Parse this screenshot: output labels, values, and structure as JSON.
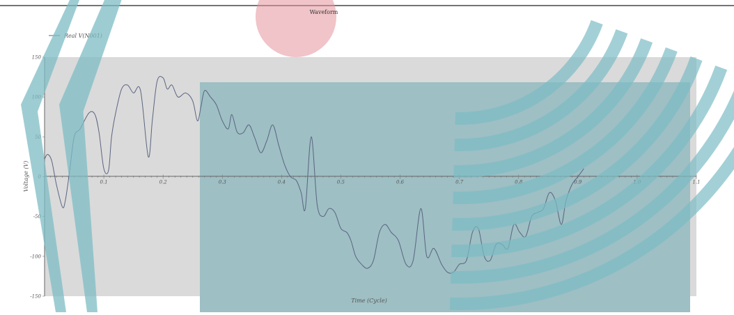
{
  "chart_data": {
    "type": "line",
    "title": "Waveform",
    "xlabel": "Time (Cycle)",
    "ylabel": "Voltage (V)",
    "legend": {
      "position": "top-left",
      "entries": [
        "Real V(N001)"
      ]
    },
    "grid": false,
    "xlim": [
      0,
      1.1
    ],
    "ylim": [
      -150,
      150
    ],
    "x_ticks": [
      "0.1",
      "0.2",
      "0.3",
      "0.4",
      "0.5",
      "0.6",
      "0.7",
      "0.8",
      "0.9",
      "1.0",
      "1.1"
    ],
    "y_ticks": [
      "150",
      "100",
      "50",
      "0",
      "-50",
      "-100",
      "-150"
    ],
    "series": [
      {
        "name": "Real V(N001)",
        "color": "#5a6480",
        "x": [
          0,
          0.005,
          0.012,
          0.02,
          0.03,
          0.035,
          0.042,
          0.05,
          0.06,
          0.075,
          0.085,
          0.092,
          0.1,
          0.108,
          0.113,
          0.12,
          0.13,
          0.14,
          0.15,
          0.162,
          0.175,
          0.182,
          0.19,
          0.2,
          0.207,
          0.215,
          0.225,
          0.238,
          0.25,
          0.258,
          0.264,
          0.27,
          0.28,
          0.29,
          0.3,
          0.31,
          0.316,
          0.325,
          0.335,
          0.345,
          0.355,
          0.365,
          0.375,
          0.385,
          0.395,
          0.405,
          0.415,
          0.425,
          0.433,
          0.44,
          0.45,
          0.46,
          0.47,
          0.48,
          0.49,
          0.5,
          0.51,
          0.517,
          0.525,
          0.535,
          0.545,
          0.555,
          0.565,
          0.575,
          0.585,
          0.597,
          0.61,
          0.622,
          0.635,
          0.645,
          0.657,
          0.67,
          0.68,
          0.69,
          0.7,
          0.712,
          0.722,
          0.732,
          0.742,
          0.752,
          0.762,
          0.772,
          0.782,
          0.792,
          0.802,
          0.812,
          0.822,
          0.832,
          0.842,
          0.852,
          0.862,
          0.872,
          0.88,
          0.89,
          0.9,
          0.91
        ],
        "y": [
          22,
          28,
          20,
          -10,
          -38,
          -30,
          5,
          50,
          60,
          80,
          78,
          55,
          10,
          8,
          50,
          80,
          110,
          115,
          105,
          108,
          25,
          72,
          120,
          124,
          110,
          115,
          100,
          105,
          95,
          70,
          88,
          108,
          100,
          90,
          70,
          60,
          78,
          56,
          55,
          65,
          48,
          30,
          45,
          65,
          40,
          15,
          0,
          -5,
          -20,
          -40,
          50,
          -35,
          -50,
          -40,
          -45,
          -65,
          -70,
          -80,
          -100,
          -110,
          -115,
          -105,
          -70,
          -60,
          -70,
          -80,
          -110,
          -105,
          -40,
          -100,
          -90,
          -110,
          -120,
          -120,
          -110,
          -105,
          -70,
          -65,
          -100,
          -105,
          -85,
          -85,
          -90,
          -60,
          -70,
          -75,
          -50,
          -45,
          -40,
          -20,
          -30,
          -60,
          -30,
          -10,
          0,
          10
        ]
      }
    ]
  }
}
